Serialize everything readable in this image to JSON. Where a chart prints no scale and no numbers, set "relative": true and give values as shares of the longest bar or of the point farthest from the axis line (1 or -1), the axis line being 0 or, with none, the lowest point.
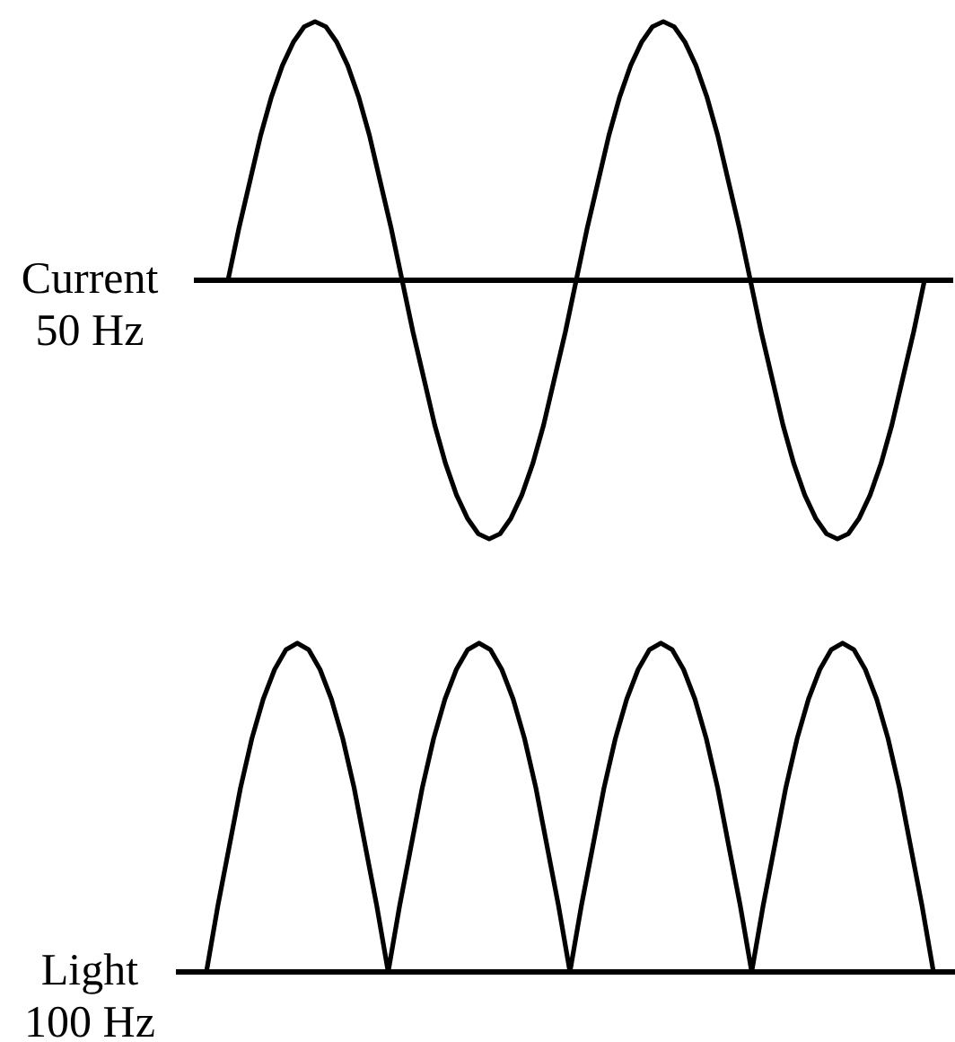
{
  "chart_data": [
    {
      "type": "line",
      "relative": true,
      "categories": [
        null,
        null,
        null,
        null,
        null,
        null,
        null,
        null,
        null,
        null,
        null,
        null,
        null,
        null,
        null,
        null,
        null,
        null,
        null,
        null,
        null,
        null,
        null,
        null,
        null,
        null,
        null,
        null,
        null,
        null,
        null,
        null,
        null,
        null,
        null,
        null,
        null,
        null,
        null,
        null,
        null,
        null,
        null,
        null,
        null,
        null,
        null,
        null,
        null,
        null,
        null,
        null,
        null,
        null,
        null,
        null,
        null,
        null,
        null,
        null,
        null,
        null,
        null,
        null,
        null
      ],
      "series": [
        {
          "name": "Current 50 Hz",
          "color": "#000000",
          "values": [
            0,
            0.2,
            0.38,
            0.56,
            0.71,
            0.83,
            0.92,
            0.98,
            1,
            0.98,
            0.92,
            0.83,
            0.71,
            0.56,
            0.38,
            0.2,
            0,
            -0.2,
            -0.38,
            -0.56,
            -0.71,
            -0.83,
            -0.92,
            -0.98,
            -1,
            -0.98,
            -0.92,
            -0.83,
            -0.71,
            -0.56,
            -0.38,
            -0.2,
            0,
            0.2,
            0.38,
            0.56,
            0.71,
            0.83,
            0.92,
            0.98,
            1,
            0.98,
            0.92,
            0.83,
            0.71,
            0.56,
            0.38,
            0.2,
            0,
            -0.2,
            -0.38,
            -0.56,
            -0.71,
            -0.83,
            -0.92,
            -0.98,
            -1,
            -0.98,
            -0.92,
            -0.83,
            -0.71,
            -0.56,
            -0.38,
            -0.2,
            0
          ]
        }
      ]
    },
    {
      "type": "line",
      "relative": true,
      "categories": [
        null,
        null,
        null,
        null,
        null,
        null,
        null,
        null,
        null,
        null,
        null,
        null,
        null,
        null,
        null,
        null,
        null,
        null,
        null,
        null,
        null,
        null,
        null,
        null,
        null,
        null,
        null,
        null,
        null,
        null,
        null,
        null,
        null,
        null,
        null,
        null,
        null,
        null,
        null,
        null,
        null,
        null,
        null,
        null,
        null,
        null,
        null,
        null,
        null,
        null,
        null,
        null,
        null,
        null,
        null,
        null,
        null,
        null,
        null,
        null,
        null,
        null,
        null,
        null,
        null
      ],
      "series": [
        {
          "name": "Light 100 Hz",
          "color": "#000000",
          "values": [
            0,
            0.2,
            0.38,
            0.56,
            0.71,
            0.83,
            0.92,
            0.98,
            1,
            0.98,
            0.92,
            0.83,
            0.71,
            0.56,
            0.38,
            0.2,
            0,
            0.2,
            0.38,
            0.56,
            0.71,
            0.83,
            0.92,
            0.98,
            1,
            0.98,
            0.92,
            0.83,
            0.71,
            0.56,
            0.38,
            0.2,
            0,
            0.2,
            0.38,
            0.56,
            0.71,
            0.83,
            0.92,
            0.98,
            1,
            0.98,
            0.92,
            0.83,
            0.71,
            0.56,
            0.38,
            0.2,
            0,
            0.2,
            0.38,
            0.56,
            0.71,
            0.83,
            0.92,
            0.98,
            1,
            0.98,
            0.92,
            0.83,
            0.71,
            0.56,
            0.38,
            0.2,
            0
          ]
        }
      ]
    }
  ]
}
